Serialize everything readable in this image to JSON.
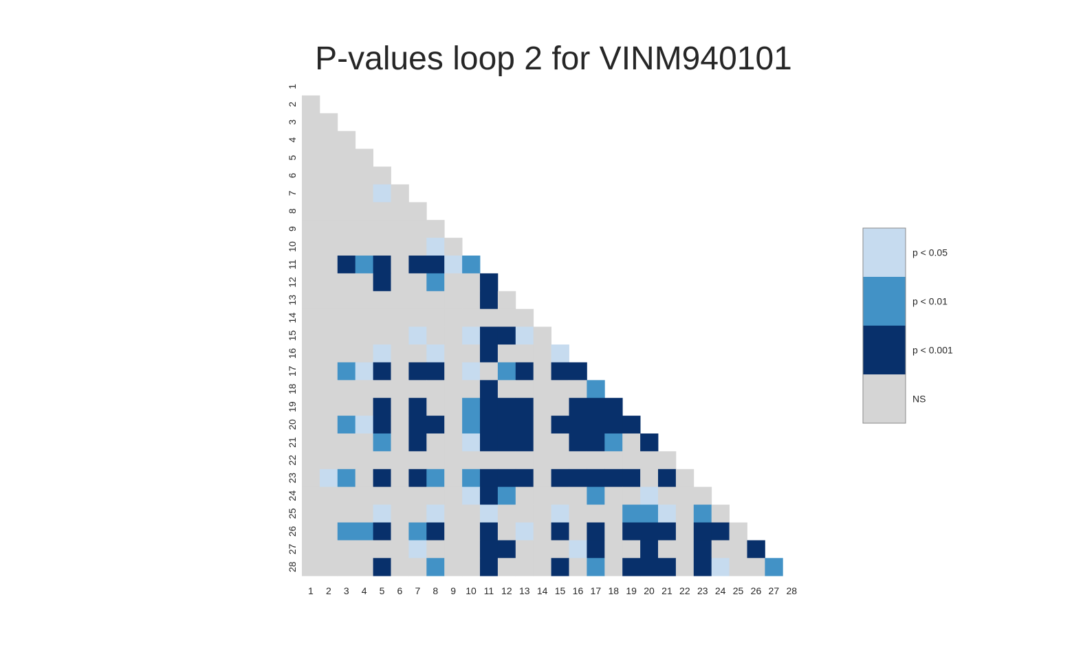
{
  "chart_data": {
    "type": "heatmap",
    "title": "P-values loop 2 for VINM940101",
    "xlabel": "",
    "ylabel": "",
    "x_labels": [
      "1",
      "2",
      "3",
      "4",
      "5",
      "6",
      "7",
      "8",
      "9",
      "10",
      "11",
      "12",
      "13",
      "14",
      "15",
      "16",
      "17",
      "18",
      "19",
      "20",
      "21",
      "22",
      "23",
      "24",
      "25",
      "26",
      "27",
      "28"
    ],
    "y_labels": [
      "1",
      "2",
      "3",
      "4",
      "5",
      "6",
      "7",
      "8",
      "9",
      "10",
      "11",
      "12",
      "13",
      "14",
      "15",
      "16",
      "17",
      "18",
      "19",
      "20",
      "21",
      "22",
      "23",
      "24",
      "25",
      "26",
      "27",
      "28"
    ],
    "mask": "upper triangle including diagonal",
    "colors": {
      "NS": "#d5d5d5",
      "p05": "#c6dbef",
      "p01": "#4292c6",
      "p001": "#08306b"
    },
    "legend": {
      "position": "right",
      "entries": [
        {
          "key": "p05",
          "label": "p < 0.05"
        },
        {
          "key": "p01",
          "label": "p < 0.01"
        },
        {
          "key": "p001",
          "label": "p < 0.001"
        },
        {
          "key": "NS",
          "label": "NS"
        }
      ]
    },
    "significant_cells": [
      {
        "row": 7,
        "col": 5,
        "level": "p05"
      },
      {
        "row": 10,
        "col": 8,
        "level": "p05"
      },
      {
        "row": 11,
        "col": 3,
        "level": "p001"
      },
      {
        "row": 11,
        "col": 4,
        "level": "p01"
      },
      {
        "row": 11,
        "col": 5,
        "level": "p001"
      },
      {
        "row": 11,
        "col": 7,
        "level": "p001"
      },
      {
        "row": 11,
        "col": 8,
        "level": "p001"
      },
      {
        "row": 11,
        "col": 9,
        "level": "p05"
      },
      {
        "row": 11,
        "col": 10,
        "level": "p01"
      },
      {
        "row": 12,
        "col": 5,
        "level": "p001"
      },
      {
        "row": 12,
        "col": 8,
        "level": "p01"
      },
      {
        "row": 12,
        "col": 11,
        "level": "p001"
      },
      {
        "row": 13,
        "col": 11,
        "level": "p001"
      },
      {
        "row": 15,
        "col": 7,
        "level": "p05"
      },
      {
        "row": 15,
        "col": 10,
        "level": "p05"
      },
      {
        "row": 15,
        "col": 11,
        "level": "p001"
      },
      {
        "row": 15,
        "col": 12,
        "level": "p001"
      },
      {
        "row": 15,
        "col": 13,
        "level": "p05"
      },
      {
        "row": 16,
        "col": 5,
        "level": "p05"
      },
      {
        "row": 16,
        "col": 8,
        "level": "p05"
      },
      {
        "row": 16,
        "col": 11,
        "level": "p001"
      },
      {
        "row": 16,
        "col": 15,
        "level": "p05"
      },
      {
        "row": 17,
        "col": 3,
        "level": "p01"
      },
      {
        "row": 17,
        "col": 4,
        "level": "p05"
      },
      {
        "row": 17,
        "col": 5,
        "level": "p001"
      },
      {
        "row": 17,
        "col": 7,
        "level": "p001"
      },
      {
        "row": 17,
        "col": 8,
        "level": "p001"
      },
      {
        "row": 17,
        "col": 10,
        "level": "p05"
      },
      {
        "row": 17,
        "col": 12,
        "level": "p01"
      },
      {
        "row": 17,
        "col": 13,
        "level": "p001"
      },
      {
        "row": 17,
        "col": 15,
        "level": "p001"
      },
      {
        "row": 17,
        "col": 16,
        "level": "p001"
      },
      {
        "row": 18,
        "col": 11,
        "level": "p001"
      },
      {
        "row": 18,
        "col": 17,
        "level": "p01"
      },
      {
        "row": 19,
        "col": 5,
        "level": "p001"
      },
      {
        "row": 19,
        "col": 7,
        "level": "p001"
      },
      {
        "row": 19,
        "col": 10,
        "level": "p01"
      },
      {
        "row": 19,
        "col": 11,
        "level": "p001"
      },
      {
        "row": 19,
        "col": 12,
        "level": "p001"
      },
      {
        "row": 19,
        "col": 13,
        "level": "p001"
      },
      {
        "row": 19,
        "col": 16,
        "level": "p001"
      },
      {
        "row": 19,
        "col": 17,
        "level": "p001"
      },
      {
        "row": 19,
        "col": 18,
        "level": "p001"
      },
      {
        "row": 20,
        "col": 3,
        "level": "p01"
      },
      {
        "row": 20,
        "col": 4,
        "level": "p05"
      },
      {
        "row": 20,
        "col": 5,
        "level": "p001"
      },
      {
        "row": 20,
        "col": 7,
        "level": "p001"
      },
      {
        "row": 20,
        "col": 8,
        "level": "p001"
      },
      {
        "row": 20,
        "col": 10,
        "level": "p01"
      },
      {
        "row": 20,
        "col": 11,
        "level": "p001"
      },
      {
        "row": 20,
        "col": 12,
        "level": "p001"
      },
      {
        "row": 20,
        "col": 13,
        "level": "p001"
      },
      {
        "row": 20,
        "col": 15,
        "level": "p001"
      },
      {
        "row": 20,
        "col": 16,
        "level": "p001"
      },
      {
        "row": 20,
        "col": 17,
        "level": "p001"
      },
      {
        "row": 20,
        "col": 18,
        "level": "p001"
      },
      {
        "row": 20,
        "col": 19,
        "level": "p001"
      },
      {
        "row": 21,
        "col": 5,
        "level": "p01"
      },
      {
        "row": 21,
        "col": 7,
        "level": "p001"
      },
      {
        "row": 21,
        "col": 10,
        "level": "p05"
      },
      {
        "row": 21,
        "col": 11,
        "level": "p001"
      },
      {
        "row": 21,
        "col": 12,
        "level": "p001"
      },
      {
        "row": 21,
        "col": 13,
        "level": "p001"
      },
      {
        "row": 21,
        "col": 16,
        "level": "p001"
      },
      {
        "row": 21,
        "col": 17,
        "level": "p001"
      },
      {
        "row": 21,
        "col": 18,
        "level": "p01"
      },
      {
        "row": 21,
        "col": 20,
        "level": "p001"
      },
      {
        "row": 23,
        "col": 2,
        "level": "p05"
      },
      {
        "row": 23,
        "col": 3,
        "level": "p01"
      },
      {
        "row": 23,
        "col": 5,
        "level": "p001"
      },
      {
        "row": 23,
        "col": 7,
        "level": "p001"
      },
      {
        "row": 23,
        "col": 8,
        "level": "p01"
      },
      {
        "row": 23,
        "col": 10,
        "level": "p01"
      },
      {
        "row": 23,
        "col": 11,
        "level": "p001"
      },
      {
        "row": 23,
        "col": 12,
        "level": "p001"
      },
      {
        "row": 23,
        "col": 13,
        "level": "p001"
      },
      {
        "row": 23,
        "col": 15,
        "level": "p001"
      },
      {
        "row": 23,
        "col": 16,
        "level": "p001"
      },
      {
        "row": 23,
        "col": 17,
        "level": "p001"
      },
      {
        "row": 23,
        "col": 18,
        "level": "p001"
      },
      {
        "row": 23,
        "col": 19,
        "level": "p001"
      },
      {
        "row": 23,
        "col": 21,
        "level": "p001"
      },
      {
        "row": 24,
        "col": 10,
        "level": "p05"
      },
      {
        "row": 24,
        "col": 11,
        "level": "p001"
      },
      {
        "row": 24,
        "col": 12,
        "level": "p01"
      },
      {
        "row": 24,
        "col": 17,
        "level": "p01"
      },
      {
        "row": 24,
        "col": 20,
        "level": "p05"
      },
      {
        "row": 25,
        "col": 5,
        "level": "p05"
      },
      {
        "row": 25,
        "col": 8,
        "level": "p05"
      },
      {
        "row": 25,
        "col": 11,
        "level": "p05"
      },
      {
        "row": 25,
        "col": 15,
        "level": "p05"
      },
      {
        "row": 25,
        "col": 19,
        "level": "p01"
      },
      {
        "row": 25,
        "col": 20,
        "level": "p01"
      },
      {
        "row": 25,
        "col": 21,
        "level": "p05"
      },
      {
        "row": 25,
        "col": 23,
        "level": "p01"
      },
      {
        "row": 26,
        "col": 3,
        "level": "p01"
      },
      {
        "row": 26,
        "col": 4,
        "level": "p01"
      },
      {
        "row": 26,
        "col": 5,
        "level": "p001"
      },
      {
        "row": 26,
        "col": 7,
        "level": "p01"
      },
      {
        "row": 26,
        "col": 8,
        "level": "p001"
      },
      {
        "row": 26,
        "col": 11,
        "level": "p001"
      },
      {
        "row": 26,
        "col": 13,
        "level": "p05"
      },
      {
        "row": 26,
        "col": 15,
        "level": "p001"
      },
      {
        "row": 26,
        "col": 17,
        "level": "p001"
      },
      {
        "row": 26,
        "col": 19,
        "level": "p001"
      },
      {
        "row": 26,
        "col": 20,
        "level": "p001"
      },
      {
        "row": 26,
        "col": 21,
        "level": "p001"
      },
      {
        "row": 26,
        "col": 23,
        "level": "p001"
      },
      {
        "row": 26,
        "col": 24,
        "level": "p001"
      },
      {
        "row": 27,
        "col": 7,
        "level": "p05"
      },
      {
        "row": 27,
        "col": 11,
        "level": "p001"
      },
      {
        "row": 27,
        "col": 12,
        "level": "p001"
      },
      {
        "row": 27,
        "col": 16,
        "level": "p05"
      },
      {
        "row": 27,
        "col": 17,
        "level": "p001"
      },
      {
        "row": 27,
        "col": 20,
        "level": "p001"
      },
      {
        "row": 27,
        "col": 23,
        "level": "p001"
      },
      {
        "row": 27,
        "col": 26,
        "level": "p001"
      },
      {
        "row": 28,
        "col": 5,
        "level": "p001"
      },
      {
        "row": 28,
        "col": 8,
        "level": "p01"
      },
      {
        "row": 28,
        "col": 11,
        "level": "p001"
      },
      {
        "row": 28,
        "col": 15,
        "level": "p001"
      },
      {
        "row": 28,
        "col": 17,
        "level": "p01"
      },
      {
        "row": 28,
        "col": 19,
        "level": "p001"
      },
      {
        "row": 28,
        "col": 20,
        "level": "p001"
      },
      {
        "row": 28,
        "col": 21,
        "level": "p001"
      },
      {
        "row": 28,
        "col": 23,
        "level": "p001"
      },
      {
        "row": 28,
        "col": 24,
        "level": "p05"
      },
      {
        "row": 28,
        "col": 27,
        "level": "p01"
      }
    ]
  }
}
